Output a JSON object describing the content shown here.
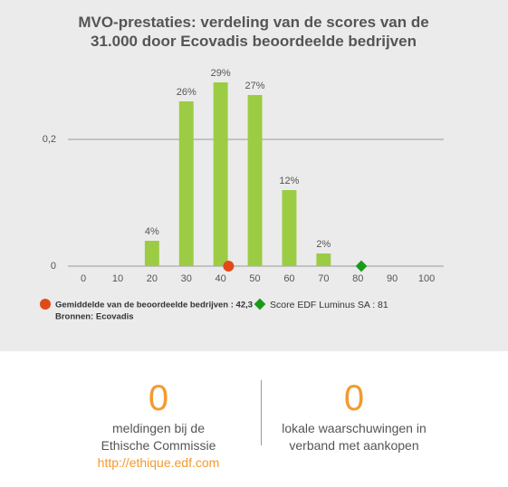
{
  "chart_data": {
    "type": "bar",
    "title": "MVO-prestaties: verdeling van de scores van de 31.000 door Ecovadis beoordeelde bedrijven",
    "x": [
      20,
      30,
      40,
      50,
      60,
      70
    ],
    "values": [
      0.04,
      0.26,
      0.29,
      0.27,
      0.12,
      0.02
    ],
    "value_labels": [
      "4%",
      "26%",
      "29%",
      "27%",
      "12%",
      "2%"
    ],
    "color": "#9ccc44",
    "xlim": [
      -4.5,
      105
    ],
    "xticks": [
      0,
      10,
      20,
      30,
      40,
      50,
      60,
      70,
      80,
      90,
      100
    ],
    "ylim": [
      0,
      0.3
    ],
    "yticks": [
      0,
      {
        "value": 0.2,
        "label": "0,2"
      }
    ],
    "grid": true,
    "markers": [
      {
        "name": "Gemiddelde van de beoordeelde bedrijven : 42,3",
        "x": 42.3,
        "color": "#e04a1a",
        "shape": "circle"
      },
      {
        "name": "Score EDF Luminus SA : 81",
        "x": 81,
        "color": "#1a9a1a",
        "shape": "diamond"
      }
    ],
    "source": "Bronnen: Ecovadis"
  },
  "stats": [
    {
      "value": "0",
      "label": "meldingen bij de Ethische Commissie",
      "link": "http://ethique.edf.com"
    },
    {
      "value": "0",
      "label": "lokale waarschuwingen in verband met aankopen"
    }
  ]
}
